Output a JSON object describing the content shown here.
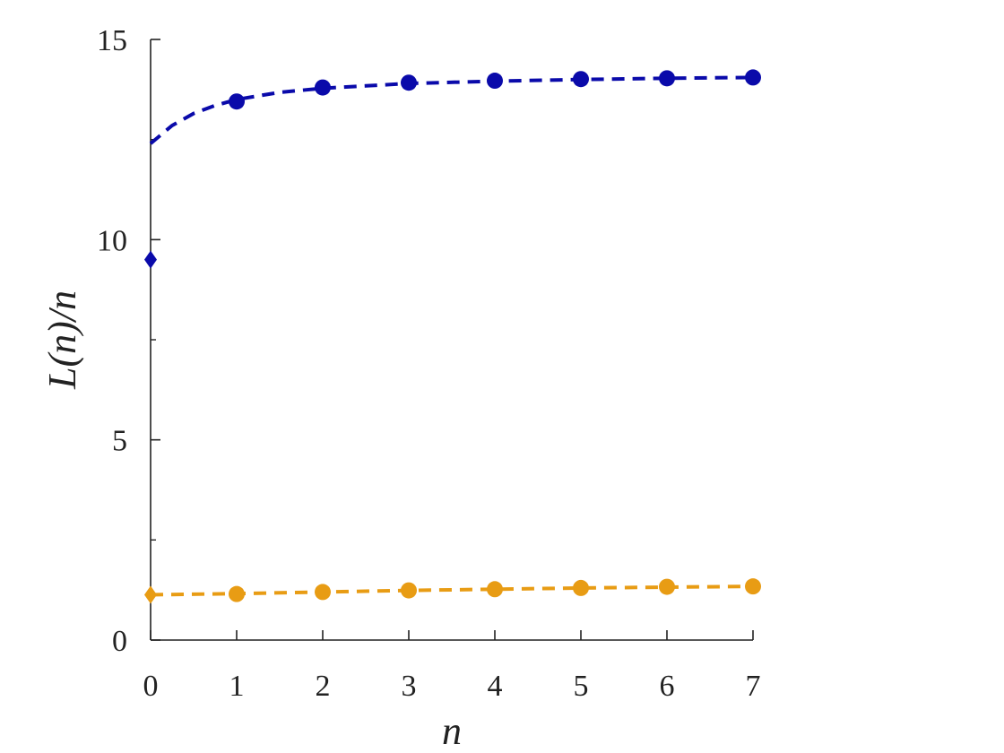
{
  "chart_data": {
    "type": "scatter",
    "xlabel": "n",
    "ylabel": "L(n)/n",
    "xlim": [
      0,
      7
    ],
    "ylim": [
      0,
      15
    ],
    "x_ticks": [
      0,
      1,
      2,
      3,
      4,
      5,
      6,
      7
    ],
    "y_ticks": [
      0,
      5,
      10,
      15
    ],
    "y_minor_ticks": [
      2.5,
      7.5,
      12.5
    ],
    "grid": false,
    "series": [
      {
        "color": "#0a0aaa",
        "diamond_point": {
          "x": 0,
          "y": 9.5
        },
        "points": [
          {
            "x": 1,
            "y": 13.45
          },
          {
            "x": 2,
            "y": 13.8
          },
          {
            "x": 3,
            "y": 13.92
          },
          {
            "x": 4,
            "y": 13.97
          },
          {
            "x": 5,
            "y": 14.01
          },
          {
            "x": 6,
            "y": 14.03
          },
          {
            "x": 7,
            "y": 14.05
          }
        ],
        "fit_curve": [
          {
            "x": 0,
            "y": 12.4
          },
          {
            "x": 0.25,
            "y": 12.85
          },
          {
            "x": 0.5,
            "y": 13.15
          },
          {
            "x": 0.75,
            "y": 13.35
          },
          {
            "x": 1,
            "y": 13.5
          },
          {
            "x": 1.5,
            "y": 13.68
          },
          {
            "x": 2,
            "y": 13.78
          },
          {
            "x": 2.5,
            "y": 13.84
          },
          {
            "x": 3,
            "y": 13.9
          },
          {
            "x": 4,
            "y": 13.96
          },
          {
            "x": 5,
            "y": 14.0
          },
          {
            "x": 6,
            "y": 14.03
          },
          {
            "x": 7,
            "y": 14.05
          }
        ]
      },
      {
        "color": "#e89c14",
        "diamond_point": {
          "x": 0,
          "y": 1.13
        },
        "points": [
          {
            "x": 1,
            "y": 1.15
          },
          {
            "x": 2,
            "y": 1.2
          },
          {
            "x": 3,
            "y": 1.24
          },
          {
            "x": 4,
            "y": 1.27
          },
          {
            "x": 5,
            "y": 1.3
          },
          {
            "x": 6,
            "y": 1.33
          },
          {
            "x": 7,
            "y": 1.34
          }
        ],
        "fit_curve": [
          {
            "x": 0,
            "y": 1.13
          },
          {
            "x": 1,
            "y": 1.16
          },
          {
            "x": 2,
            "y": 1.2
          },
          {
            "x": 3,
            "y": 1.24
          },
          {
            "x": 4,
            "y": 1.27
          },
          {
            "x": 5,
            "y": 1.3
          },
          {
            "x": 6,
            "y": 1.32
          },
          {
            "x": 7,
            "y": 1.34
          }
        ]
      }
    ]
  }
}
